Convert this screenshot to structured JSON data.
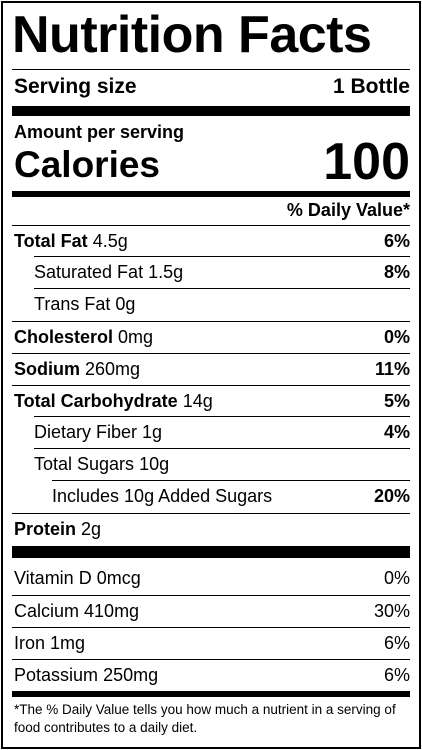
{
  "title": "Nutrition Facts",
  "serving": {
    "label": "Serving size",
    "value": "1 Bottle"
  },
  "amount_per_serving": "Amount per serving",
  "calories": {
    "label": "Calories",
    "value": "100"
  },
  "daily_value_header": "% Daily Value*",
  "nutrients": [
    {
      "name": "Total Fat",
      "amount": "4.5g",
      "dv": "6%"
    },
    {
      "name": "Saturated Fat",
      "amount": "1.5g",
      "dv": "8%"
    },
    {
      "name": "Trans Fat",
      "amount": "0g",
      "dv": ""
    },
    {
      "name": "Cholesterol",
      "amount": "0mg",
      "dv": "0%"
    },
    {
      "name": "Sodium",
      "amount": "260mg",
      "dv": "11%"
    },
    {
      "name": "Total Carbohydrate",
      "amount": "14g",
      "dv": "5%"
    },
    {
      "name": "Dietary Fiber",
      "amount": "1g",
      "dv": "4%"
    },
    {
      "name": "Total Sugars",
      "amount": "10g",
      "dv": ""
    },
    {
      "name": "Includes 10g Added Sugars",
      "amount": "",
      "dv": "20%"
    },
    {
      "name": "Protein",
      "amount": "2g",
      "dv": ""
    }
  ],
  "micronutrients": [
    {
      "name": "Vitamin D",
      "amount": "0mcg",
      "dv": "0%"
    },
    {
      "name": "Calcium",
      "amount": "410mg",
      "dv": "30%"
    },
    {
      "name": "Iron",
      "amount": "1mg",
      "dv": "6%"
    },
    {
      "name": "Potassium",
      "amount": "250mg",
      "dv": "6%"
    }
  ],
  "footnote": "*The % Daily Value tells you how much a nutrient in a serving of food contributes to a daily diet."
}
